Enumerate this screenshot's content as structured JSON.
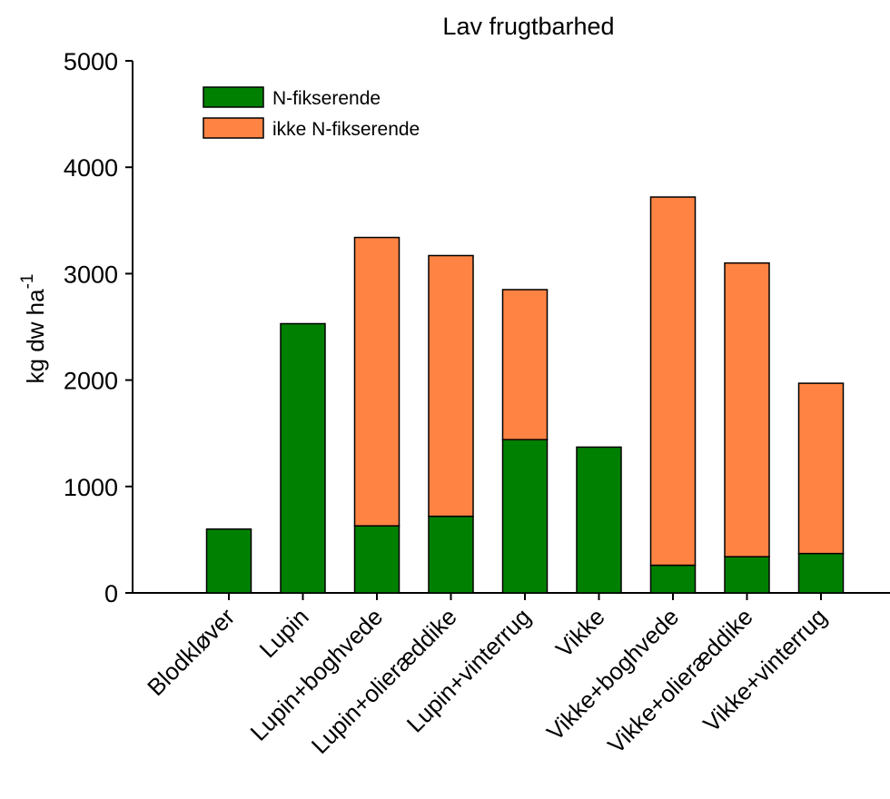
{
  "chart_data": {
    "type": "bar",
    "stacked": true,
    "title": "Lav frugtbarhed",
    "ylabel": "kg dw ha",
    "ylabel_superscript": "-1",
    "xlabel": "",
    "ylim": [
      0,
      5000
    ],
    "yticks": [
      "0",
      "1000",
      "2000",
      "3000",
      "4000",
      "5000"
    ],
    "grid": false,
    "legend_position": "top-left",
    "categories": [
      "Blodkløver",
      "Lupin",
      "Lupin+boghvede",
      "Lupin+olieræddike",
      "Lupin+vinterrug",
      "Vikke",
      "Vikke+boghvede",
      "Vikke+olieræddike",
      "Vikke+vinterrug"
    ],
    "series": [
      {
        "name": "N-fikserende",
        "color": "#008000",
        "values": [
          600,
          2530,
          630,
          720,
          1440,
          1370,
          260,
          340,
          370
        ]
      },
      {
        "name": "ikke N-fikserende",
        "color": "#ff8444",
        "values": [
          0,
          0,
          2710,
          2450,
          1410,
          0,
          3460,
          2760,
          1600
        ]
      }
    ]
  }
}
